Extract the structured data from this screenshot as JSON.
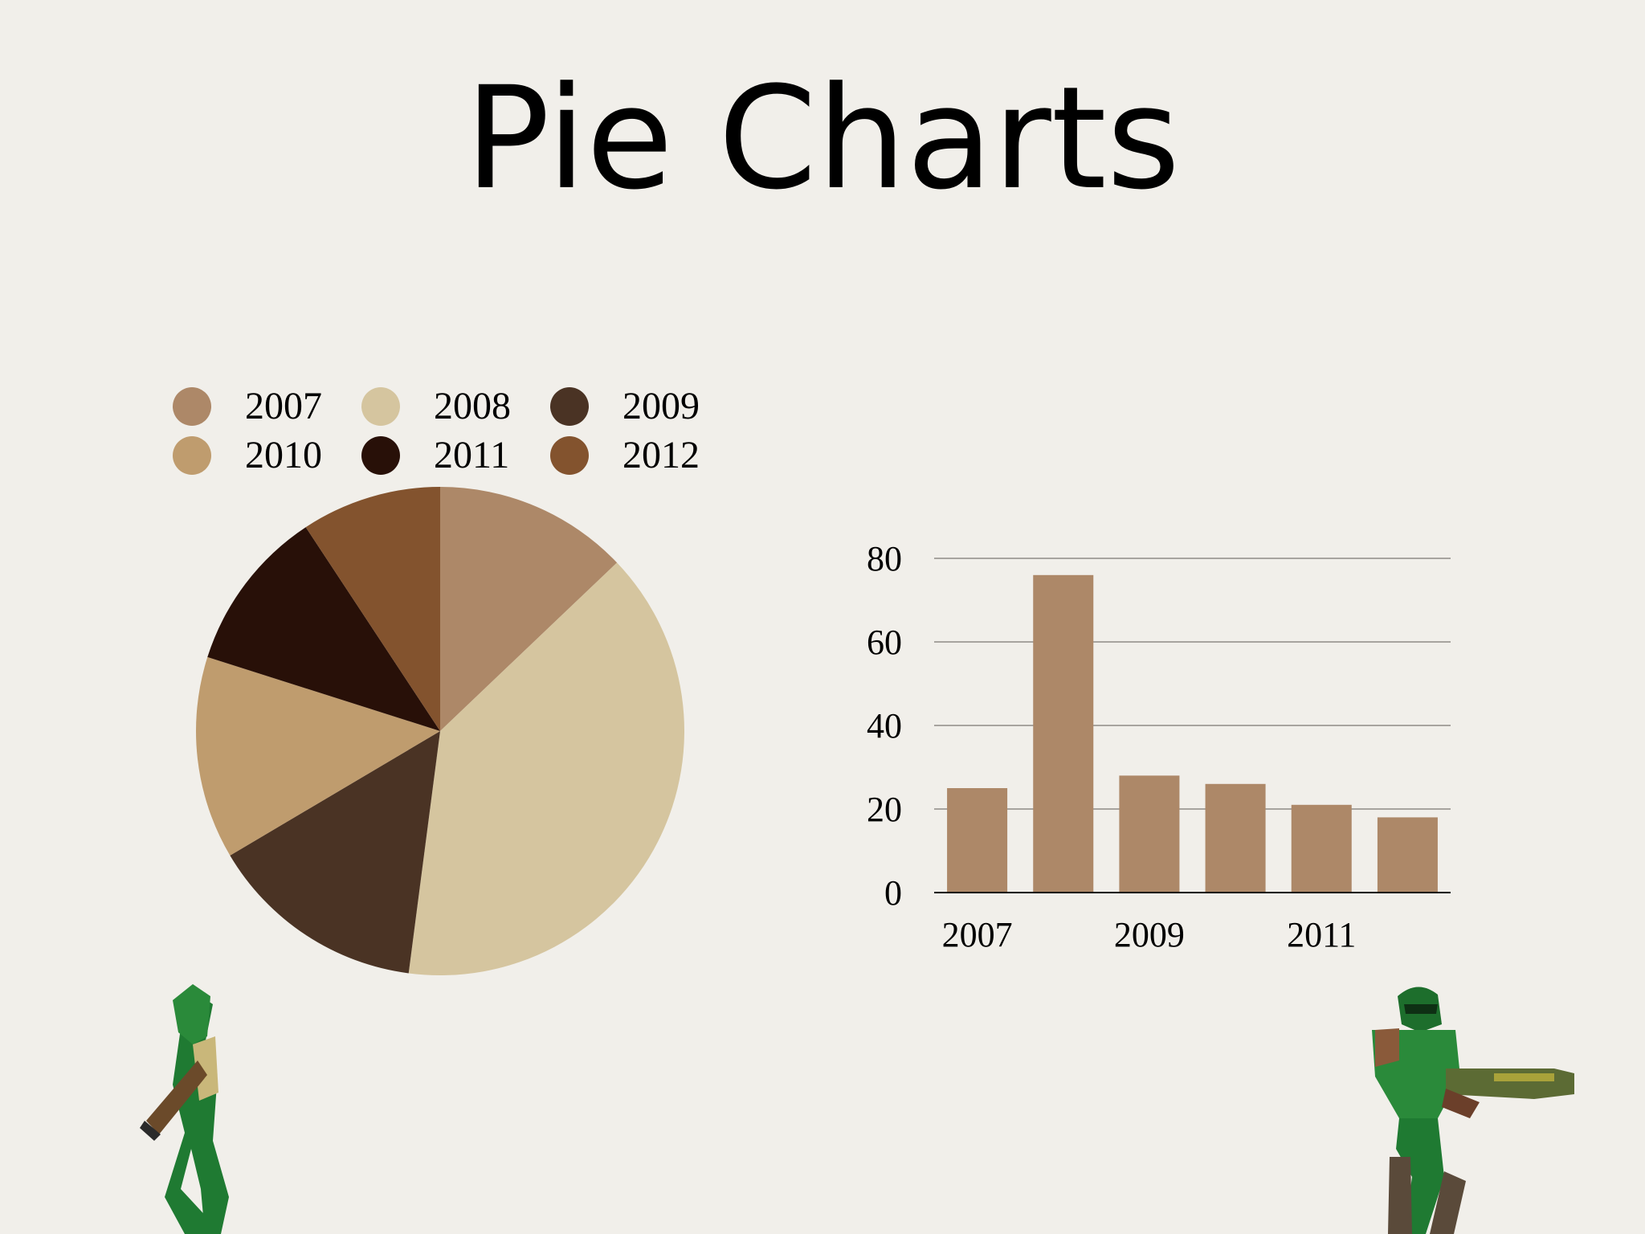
{
  "slide": {
    "title": "Pie Charts"
  },
  "chart_data": [
    {
      "type": "pie",
      "title": "",
      "categories": [
        "2007",
        "2008",
        "2009",
        "2010",
        "2011",
        "2012"
      ],
      "values": [
        25,
        76,
        28,
        26,
        21,
        18
      ],
      "colors": [
        "#ad8868",
        "#d5c59f",
        "#4a3324",
        "#bf9c6e",
        "#281008",
        "#83532e"
      ],
      "legend": {
        "placement": "top",
        "columns": 3
      }
    },
    {
      "type": "bar",
      "title": "",
      "categories": [
        "2007",
        "2008",
        "2009",
        "2010",
        "2011",
        "2012"
      ],
      "values": [
        25,
        76,
        28,
        26,
        21,
        18
      ],
      "xtick_labels": [
        "2007",
        "",
        "2009",
        "",
        "2011",
        ""
      ],
      "yticks": [
        0,
        20,
        40,
        60,
        80
      ],
      "ylim": [
        0,
        80
      ],
      "xlabel": "",
      "ylabel": "",
      "grid": true,
      "bar_color": "#ad8868"
    }
  ],
  "decorations": {
    "left_figure": "lizard-warrior-figure",
    "right_figure": "armored-soldier-figure"
  }
}
